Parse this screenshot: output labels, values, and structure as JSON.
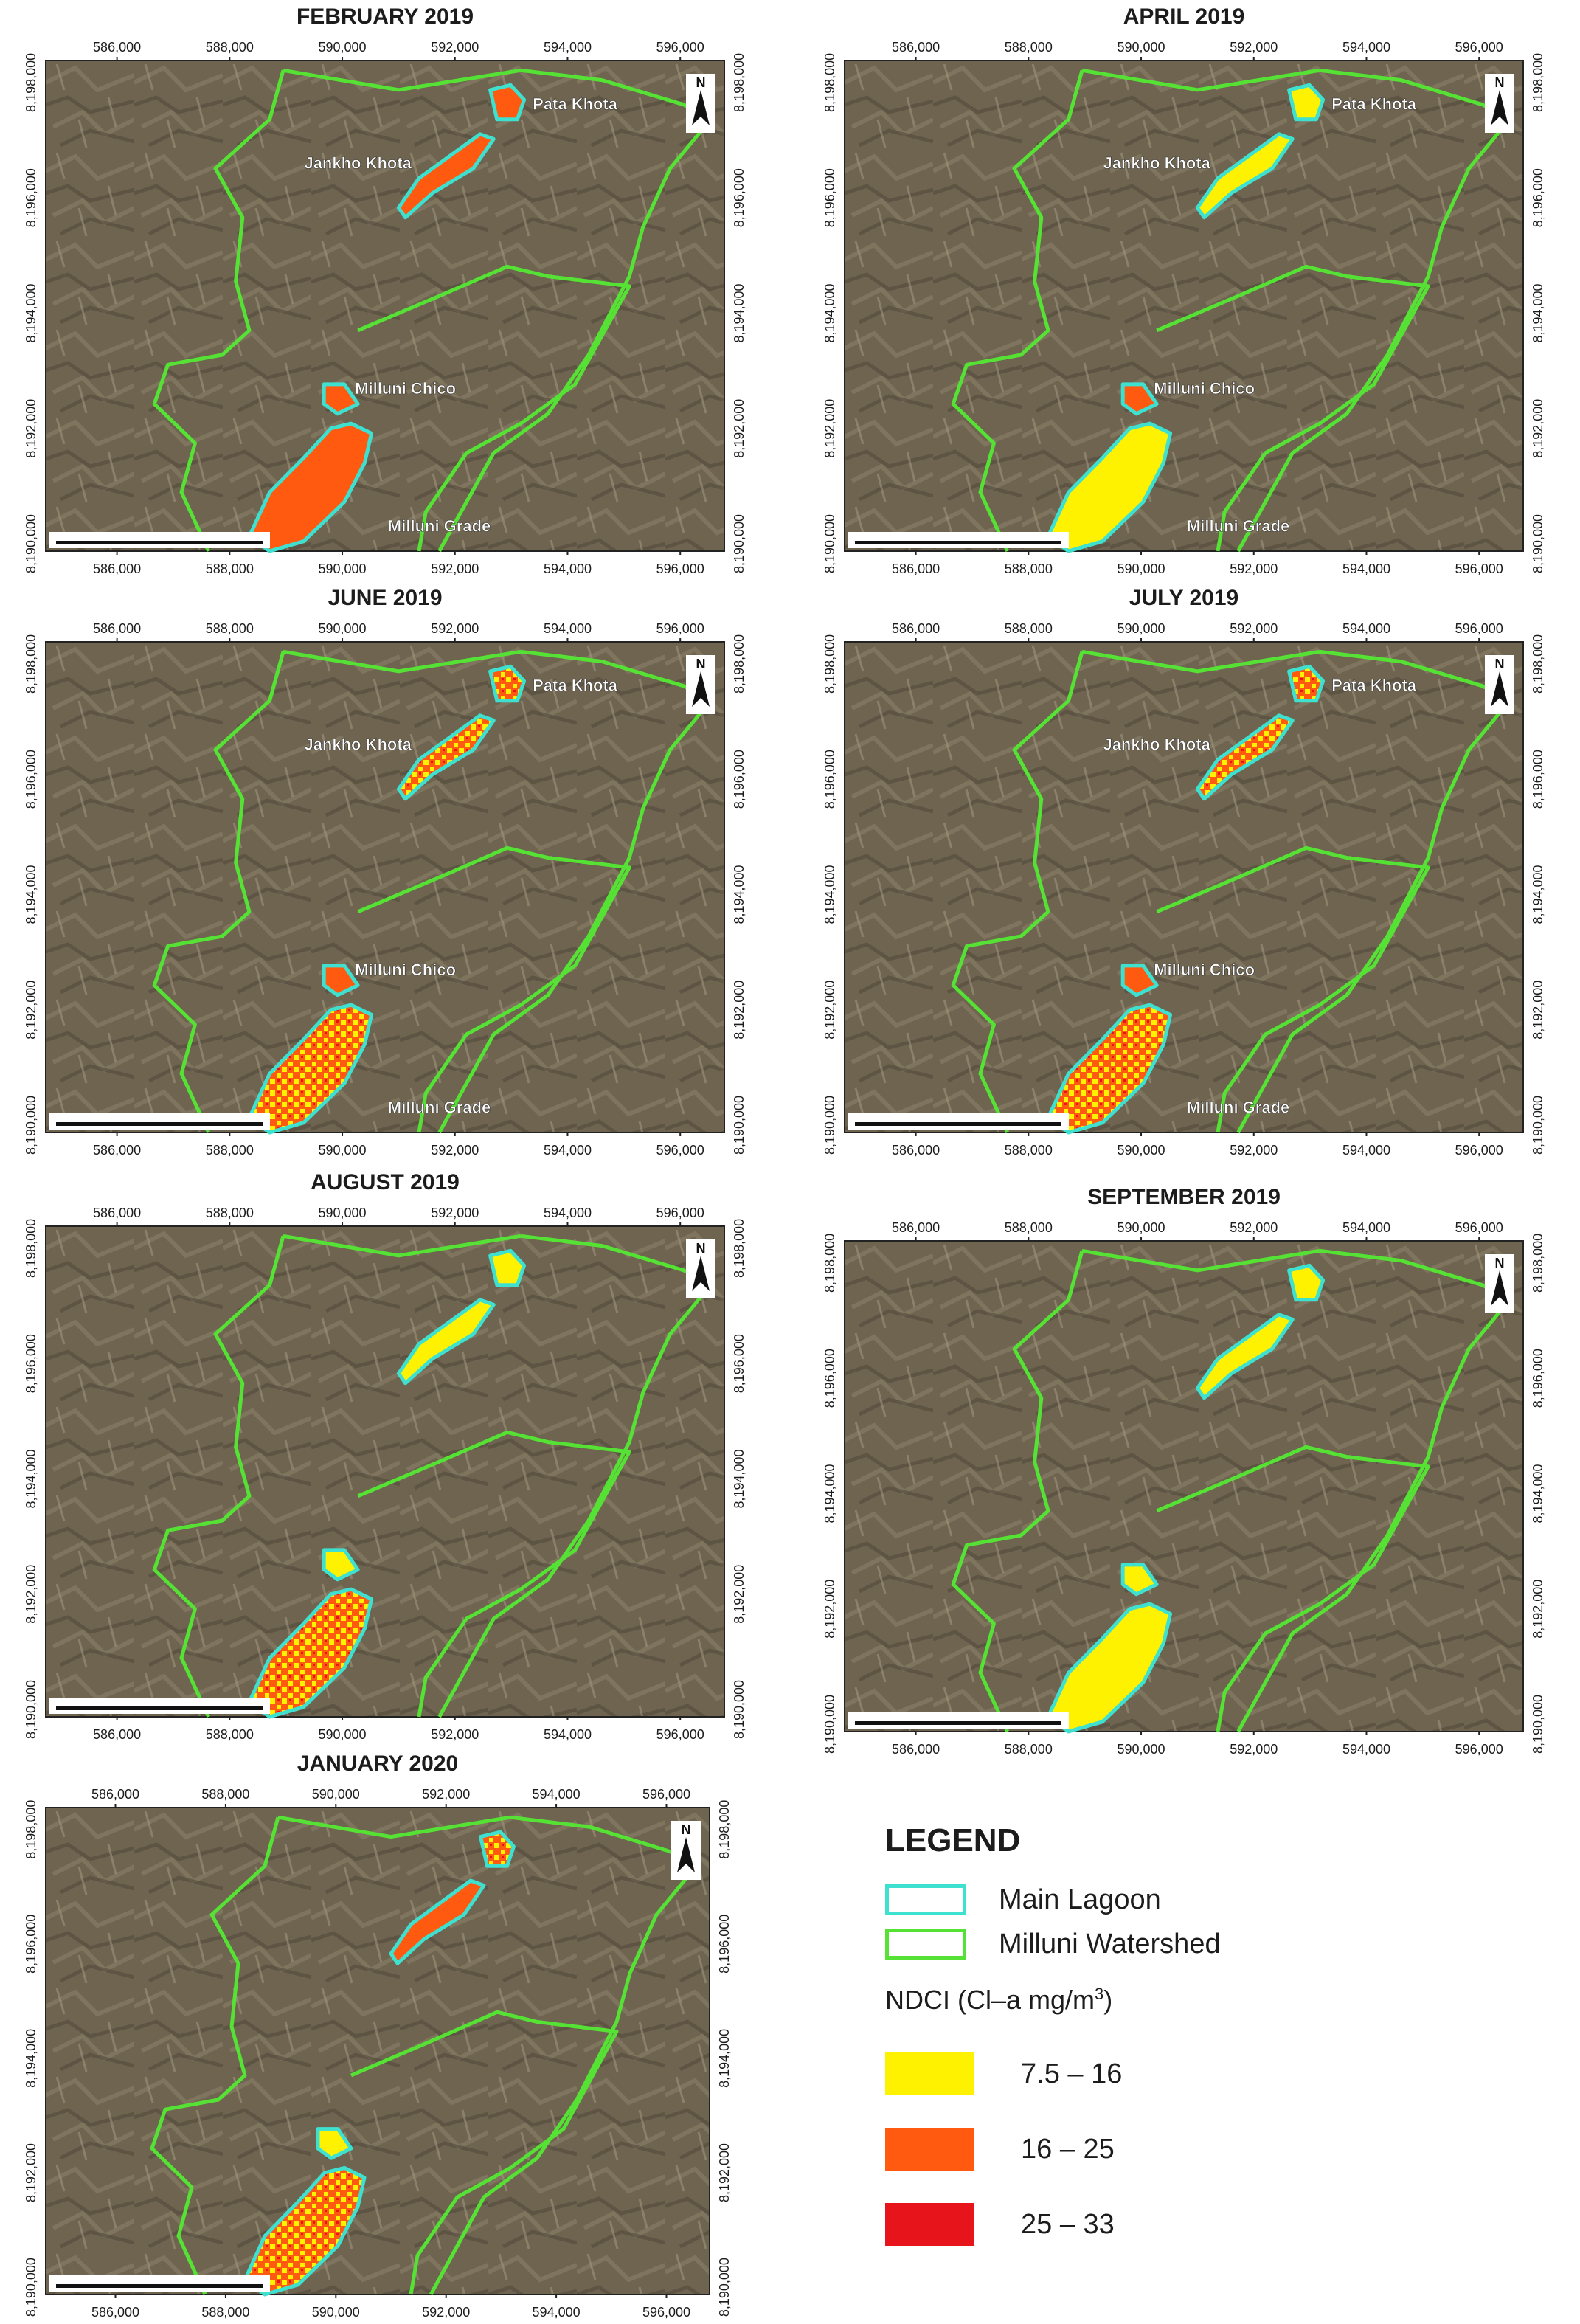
{
  "colors": {
    "main_lagoon": "#3ee0d0",
    "watershed": "#55e234",
    "class_low": "#fff200",
    "class_mid": "#ff5a10",
    "class_high": "#e8141c",
    "terrain": "#6e6450"
  },
  "easting_ticks": [
    "586,000",
    "588,000",
    "590,000",
    "592,000",
    "594,000",
    "596,000"
  ],
  "northing_ticks": [
    "8,198,000",
    "8,196,000",
    "8,194,000",
    "8,192,000",
    "8,190,000"
  ],
  "maps": [
    {
      "title": "FEBRUARY 2019",
      "labels": [
        "Pata Khota",
        "Jankho Khota",
        "Milluni Chico",
        "Milluni Grade"
      ],
      "lagoon_classes": [
        "mid",
        "mid",
        "mid",
        "mid"
      ]
    },
    {
      "title": "APRIL 2019",
      "labels": [
        "Pata Khota",
        "Jankho Khota",
        "Milluni Chico",
        "Milluni Grade"
      ],
      "lagoon_classes": [
        "low",
        "low",
        "mid",
        "low"
      ]
    },
    {
      "title": "JUNE 2019",
      "labels": [
        "Pata Khota",
        "Jankho Khota",
        "Milluni Chico",
        "Milluni Grade"
      ],
      "lagoon_classes": [
        "mix",
        "mix",
        "mid",
        "mix"
      ]
    },
    {
      "title": "JULY 2019",
      "labels": [
        "Pata Khota",
        "Jankho Khota",
        "Milluni Chico",
        "Milluni Grade"
      ],
      "lagoon_classes": [
        "mix",
        "mix",
        "mid",
        "mix"
      ]
    },
    {
      "title": "AUGUST 2019",
      "labels": [],
      "lagoon_classes": [
        "low",
        "low",
        "low",
        "mix"
      ]
    },
    {
      "title": "SEPTEMBER 2019",
      "labels": [],
      "lagoon_classes": [
        "low",
        "low",
        "low",
        "low"
      ]
    },
    {
      "title": "JANUARY 2020",
      "labels": [],
      "lagoon_classes": [
        "mix",
        "mid",
        "low",
        "mix"
      ]
    }
  ],
  "north_arrow": "N",
  "legend": {
    "title": "LEGEND",
    "main_lagoon": "Main Lagoon",
    "watershed": "Milluni Watershed",
    "ndci_heading": "NDCI (Cl–a mg/m",
    "ndci_heading_sup": "3",
    "ndci_heading_close": ")",
    "classes": [
      {
        "range": "7.5 – 16",
        "color": "#fff200"
      },
      {
        "range": "16 – 25",
        "color": "#ff5a10"
      },
      {
        "range": "25 – 33",
        "color": "#e8141c"
      }
    ]
  }
}
